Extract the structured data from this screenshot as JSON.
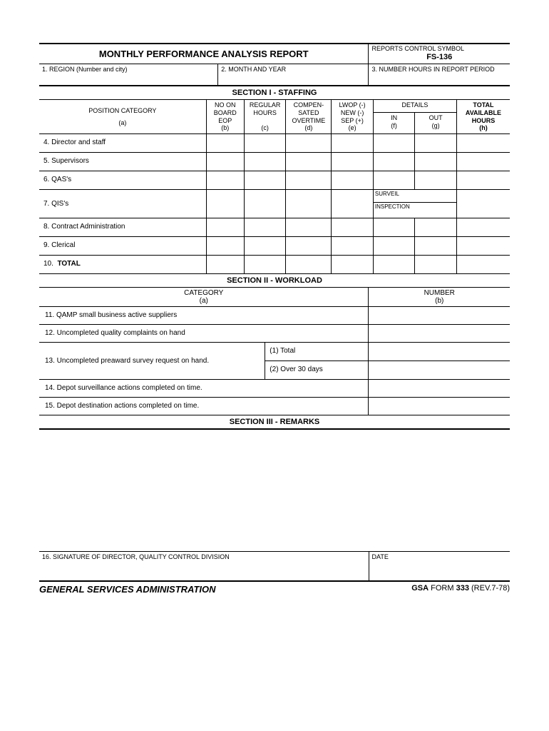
{
  "title": "MONTHLY PERFORMANCE ANALYSIS REPORT",
  "control": {
    "label": "REPORTS CONTROL SYMBOL",
    "symbol": "FS-136"
  },
  "fields": {
    "region": "1. REGION (Number and city)",
    "month": "2. MONTH AND YEAR",
    "hours": "3. NUMBER HOURS IN REPORT PERIOD"
  },
  "section1": {
    "title": "SECTION I - STAFFING",
    "headers": {
      "position": "POSITION CATEGORY",
      "position_sub": "(a)",
      "noon": "NO ON\nBOARD\nEOP\n(b)",
      "regular": "REGULAR\nHOURS\n\n(c)",
      "compen": "COMPEN-\nSATED\nOVERTIME\n(d)",
      "lwop": "LWOP (-)\nNEW (-)\nSEP (+)\n(e)",
      "details": "DETAILS",
      "in": "IN\n(f)",
      "out": "OUT\n(g)",
      "total": "TOTAL\nAVAILABLE\nHOURS\n(h)"
    },
    "rows": [
      "4. Director and staff",
      "5. Supervisors",
      "6.  QAS's",
      "7.  QIS's",
      "8.  Contract Administration",
      "9.  Clerical"
    ],
    "total_row": "10.  TOTAL",
    "surveil": "SURVEIL",
    "inspection": "INSPECTION"
  },
  "section2": {
    "title": "SECTION II - WORKLOAD",
    "cat_hdr": "CATEGORY",
    "cat_sub": "(a)",
    "num_hdr": "NUMBER",
    "num_sub": "(b)",
    "rows": {
      "r11": "11.  QAMP small business active suppliers",
      "r12": "12.  Uncompleted quality complaints on hand",
      "r13": "13.  Uncompleted preaward survey request on hand.",
      "r13a": "(1) Total",
      "r13b": "(2) Over 30 days",
      "r14": "14.  Depot surveillance actions completed on time.",
      "r15": "15.  Depot destination actions completed on time."
    }
  },
  "section3": {
    "title": "SECTION III - REMARKS"
  },
  "signature": {
    "label": "16.  SIGNATURE OF DIRECTOR, QUALITY CONTROL DIVISION",
    "date": "DATE"
  },
  "footer": {
    "agency": "GENERAL SERVICES ADMINISTRATION",
    "form_prefix": "GSA",
    "form_word": " FORM ",
    "form_num": "333",
    "rev": " (REV.7-78)"
  }
}
